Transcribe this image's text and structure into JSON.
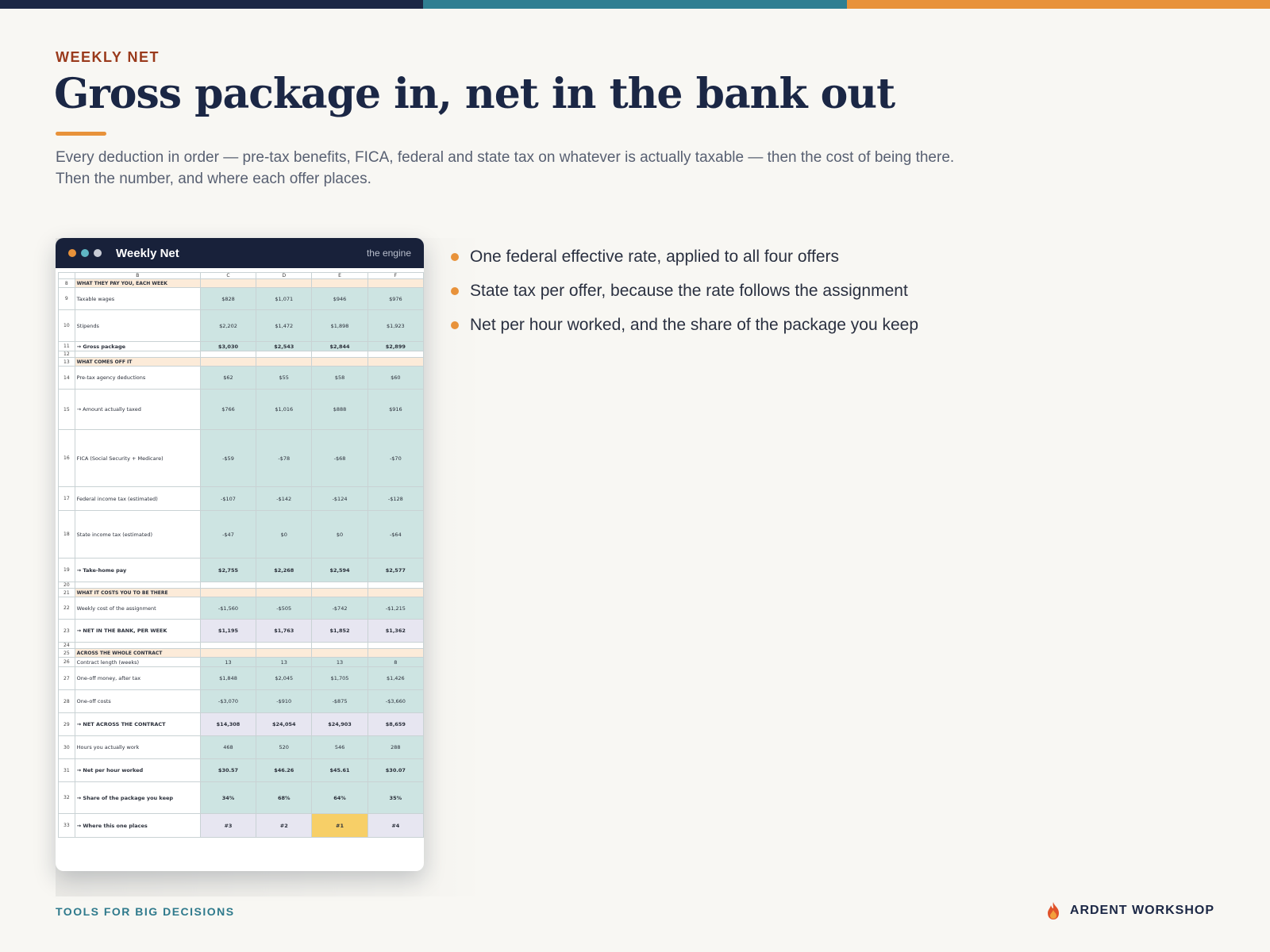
{
  "colors": {
    "topbar": [
      "#1b2745",
      "#2f7f92",
      "#e8923a"
    ],
    "accent": "#e8923a",
    "navy": "#1b2745",
    "teal": "#2f7a8c",
    "window_dots": [
      "#e8923a",
      "#5fb7c4",
      "#c9cdd6"
    ]
  },
  "header": {
    "eyebrow": "WEEKLY NET",
    "title": "Gross package in, net in the bank out",
    "subtitle": "Every deduction in order — pre-tax benefits, FICA, federal and state tax on whatever is actually taxable — then the cost of being there. Then the number, and where each offer places."
  },
  "window": {
    "title": "Weekly Net",
    "tag": "the engine",
    "columns": [
      "B",
      "C",
      "D",
      "E",
      "F"
    ],
    "rows": [
      {
        "n": "8",
        "type": "section",
        "label": "WHAT THEY PAY YOU, EACH WEEK",
        "values": []
      },
      {
        "n": "9",
        "type": "normal",
        "label": "Taxable wages",
        "values": [
          "$828",
          "$1,071",
          "$946",
          "$976"
        ]
      },
      {
        "n": "10",
        "type": "normal",
        "label": "Stipends",
        "values": [
          "$2,202",
          "$1,472",
          "$1,898",
          "$1,923"
        ]
      },
      {
        "n": "11",
        "type": "strong",
        "label": "→ Gross package",
        "values": [
          "$3,030",
          "$2,543",
          "$2,844",
          "$2,899"
        ]
      },
      {
        "n": "12",
        "type": "blank",
        "label": "",
        "values": []
      },
      {
        "n": "13",
        "type": "section",
        "label": "WHAT COMES OFF IT",
        "values": []
      },
      {
        "n": "14",
        "type": "normal",
        "label": "Pre-tax agency deductions",
        "values": [
          "$62",
          "$55",
          "$58",
          "$60"
        ]
      },
      {
        "n": "15",
        "type": "normal",
        "label": "→ Amount actually taxed",
        "values": [
          "$766",
          "$1,016",
          "$888",
          "$916"
        ]
      },
      {
        "n": "16",
        "type": "normal",
        "label": "FICA (Social Security + Medicare)",
        "values": [
          "-$59",
          "-$78",
          "-$68",
          "-$70"
        ]
      },
      {
        "n": "17",
        "type": "normal",
        "label": "Federal income tax (estimated)",
        "values": [
          "-$107",
          "-$142",
          "-$124",
          "-$128"
        ]
      },
      {
        "n": "18",
        "type": "normal",
        "label": "State income tax (estimated)",
        "values": [
          "-$47",
          "$0",
          "$0",
          "-$64"
        ]
      },
      {
        "n": "19",
        "type": "strong",
        "label": "→ Take-home pay",
        "values": [
          "$2,755",
          "$2,268",
          "$2,594",
          "$2,577"
        ]
      },
      {
        "n": "20",
        "type": "blank",
        "label": "",
        "values": []
      },
      {
        "n": "21",
        "type": "section",
        "label": "WHAT IT COSTS YOU TO BE THERE",
        "values": []
      },
      {
        "n": "22",
        "type": "normal",
        "label": "Weekly cost of the assignment",
        "values": [
          "-$1,560",
          "-$505",
          "-$742",
          "-$1,215"
        ]
      },
      {
        "n": "23",
        "type": "key",
        "label": "→ NET IN THE BANK, PER WEEK",
        "values": [
          "$1,195",
          "$1,763",
          "$1,852",
          "$1,362"
        ]
      },
      {
        "n": "24",
        "type": "blank",
        "label": "",
        "values": []
      },
      {
        "n": "25",
        "type": "section",
        "label": "ACROSS THE WHOLE CONTRACT",
        "values": []
      },
      {
        "n": "26",
        "type": "normal",
        "label": "Contract length (weeks)",
        "values": [
          "13",
          "13",
          "13",
          "8"
        ]
      },
      {
        "n": "27",
        "type": "normal",
        "label": "One-off money, after tax",
        "values": [
          "$1,848",
          "$2,045",
          "$1,705",
          "$1,426"
        ]
      },
      {
        "n": "28",
        "type": "normal",
        "label": "One-off costs",
        "values": [
          "-$3,070",
          "-$910",
          "-$875",
          "-$3,660"
        ]
      },
      {
        "n": "29",
        "type": "key",
        "label": "→ NET ACROSS THE CONTRACT",
        "values": [
          "$14,308",
          "$24,054",
          "$24,903",
          "$8,659"
        ]
      },
      {
        "n": "30",
        "type": "normal",
        "label": "Hours you actually work",
        "values": [
          "468",
          "520",
          "546",
          "288"
        ]
      },
      {
        "n": "31",
        "type": "strong",
        "label": "→ Net per hour worked",
        "values": [
          "$30.57",
          "$46.26",
          "$45.61",
          "$30.07"
        ]
      },
      {
        "n": "32",
        "type": "strong",
        "label": "→ Share of the package you keep",
        "values": [
          "34%",
          "68%",
          "64%",
          "35%"
        ]
      },
      {
        "n": "33",
        "type": "key",
        "label": "→ Where this one places",
        "values": [
          "#3",
          "#2",
          "#1",
          "#4"
        ],
        "highlight": 2
      }
    ]
  },
  "bullets": [
    "One federal effective rate, applied to all four offers",
    "State tax per offer, because the rate follows the assignment",
    "Net per hour worked, and the share of the package you keep"
  ],
  "footer": {
    "left": "TOOLS FOR BIG DECISIONS",
    "brand": "ARDENT WORKSHOP",
    "brand_icon": "flame-icon"
  }
}
